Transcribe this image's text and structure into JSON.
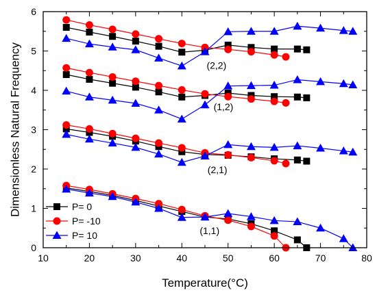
{
  "chart_data": {
    "type": "line",
    "xlabel": "Temperature(°C)",
    "ylabel": "Dimensionless Natural Frequency",
    "xlim": [
      10,
      80
    ],
    "ylim": [
      0,
      6
    ],
    "xticks": [
      10,
      20,
      30,
      40,
      50,
      60,
      70,
      80
    ],
    "yticks": [
      0,
      1,
      2,
      3,
      4,
      5,
      6
    ],
    "grid": false,
    "legend_position": "bottom-left",
    "legend": [
      {
        "label": "P= 0",
        "marker": "square",
        "color": "#000000"
      },
      {
        "label": "P= -10",
        "marker": "circle",
        "color": "#ff0000"
      },
      {
        "label": "P= 10",
        "marker": "triangle",
        "color": "#0000ff"
      }
    ],
    "annotations": [
      {
        "text": "(2,2)",
        "x": 47.5,
        "y": 4.55
      },
      {
        "text": "(1,2)",
        "x": 49.0,
        "y": 3.5
      },
      {
        "text": "(2,1)",
        "x": 47.7,
        "y": 1.9
      },
      {
        "text": "(1,1)",
        "x": 46.0,
        "y": 0.35
      }
    ],
    "series": [
      {
        "name": "P= 0",
        "mode": "(2,2)",
        "marker": "square",
        "color": "#000000",
        "x": [
          15,
          20,
          25,
          30,
          35,
          40,
          45,
          50,
          55,
          60,
          65,
          67
        ],
        "y": [
          5.6,
          5.48,
          5.37,
          5.25,
          5.12,
          4.97,
          5.02,
          5.15,
          5.09,
          5.05,
          5.05,
          5.03
        ]
      },
      {
        "name": "P= -10",
        "mode": "(2,2)",
        "marker": "circle",
        "color": "#ff0000",
        "x": [
          15,
          20,
          25,
          30,
          35,
          40,
          45,
          50,
          55,
          60,
          62.5
        ],
        "y": [
          5.79,
          5.66,
          5.55,
          5.43,
          5.31,
          5.19,
          5.09,
          5.04,
          4.98,
          4.9,
          4.85
        ]
      },
      {
        "name": "P= 10",
        "mode": "(2,2)",
        "marker": "triangle",
        "color": "#0000ff",
        "x": [
          15,
          20,
          25,
          30,
          35,
          40,
          45,
          50,
          55,
          60,
          65,
          70,
          75,
          77
        ],
        "y": [
          5.32,
          5.18,
          5.1,
          5.03,
          4.82,
          4.62,
          4.98,
          5.49,
          5.5,
          5.5,
          5.63,
          5.58,
          5.52,
          5.5
        ]
      },
      {
        "name": "P= 0",
        "mode": "(1,2)",
        "marker": "square",
        "color": "#000000",
        "x": [
          15,
          20,
          25,
          30,
          35,
          40,
          45,
          50,
          55,
          60,
          65,
          67
        ],
        "y": [
          4.4,
          4.28,
          4.18,
          4.08,
          3.96,
          3.83,
          3.87,
          3.93,
          3.87,
          3.84,
          3.83,
          3.81
        ]
      },
      {
        "name": "P= -10",
        "mode": "(1,2)",
        "marker": "circle",
        "color": "#ff0000",
        "x": [
          15,
          20,
          25,
          30,
          35,
          40,
          45,
          50,
          55,
          60,
          62.5
        ],
        "y": [
          4.57,
          4.45,
          4.34,
          4.23,
          4.12,
          4.01,
          3.91,
          3.84,
          3.78,
          3.72,
          3.68
        ]
      },
      {
        "name": "P= 10",
        "mode": "(1,2)",
        "marker": "triangle",
        "color": "#0000ff",
        "x": [
          15,
          20,
          25,
          30,
          35,
          40,
          45,
          50,
          55,
          60,
          65,
          70,
          75,
          77
        ],
        "y": [
          3.98,
          3.83,
          3.75,
          3.67,
          3.5,
          3.27,
          3.63,
          4.11,
          4.12,
          4.13,
          4.27,
          4.22,
          4.17,
          4.14
        ]
      },
      {
        "name": "P= 0",
        "mode": "(2,1)",
        "marker": "square",
        "color": "#000000",
        "x": [
          15,
          20,
          25,
          30,
          35,
          40,
          45,
          50,
          55,
          60,
          65,
          67
        ],
        "y": [
          3.02,
          2.93,
          2.83,
          2.71,
          2.57,
          2.44,
          2.37,
          2.35,
          2.31,
          2.26,
          2.23,
          2.2
        ]
      },
      {
        "name": "P= -10",
        "mode": "(2,1)",
        "marker": "circle",
        "color": "#ff0000",
        "x": [
          15,
          20,
          25,
          30,
          35,
          40,
          45,
          50,
          55,
          60,
          62.5
        ],
        "y": [
          3.12,
          3.02,
          2.9,
          2.78,
          2.66,
          2.54,
          2.41,
          2.36,
          2.29,
          2.21,
          2.14
        ]
      },
      {
        "name": "P= 10",
        "mode": "(2,1)",
        "marker": "triangle",
        "color": "#0000ff",
        "x": [
          15,
          20,
          25,
          30,
          35,
          40,
          45,
          50,
          55,
          60,
          65,
          70,
          75,
          77
        ],
        "y": [
          2.88,
          2.76,
          2.66,
          2.55,
          2.38,
          2.17,
          2.33,
          2.62,
          2.57,
          2.55,
          2.59,
          2.53,
          2.46,
          2.43
        ]
      },
      {
        "name": "P= 0",
        "mode": "(1,1)",
        "marker": "square",
        "color": "#000000",
        "x": [
          15,
          20,
          25,
          30,
          35,
          40,
          45,
          50,
          55,
          60,
          65,
          67
        ],
        "y": [
          1.52,
          1.43,
          1.33,
          1.2,
          1.06,
          0.92,
          0.78,
          0.73,
          0.61,
          0.43,
          0.2,
          0.0
        ]
      },
      {
        "name": "P= -10",
        "mode": "(1,1)",
        "marker": "circle",
        "color": "#ff0000",
        "x": [
          15,
          20,
          25,
          30,
          35,
          40,
          45,
          50,
          55,
          60,
          62.5
        ],
        "y": [
          1.58,
          1.48,
          1.37,
          1.25,
          1.12,
          0.97,
          0.81,
          0.7,
          0.54,
          0.3,
          0.0
        ]
      },
      {
        "name": "P= 10",
        "mode": "(1,1)",
        "marker": "triangle",
        "color": "#0000ff",
        "x": [
          15,
          20,
          25,
          30,
          35,
          40,
          45,
          50,
          55,
          60,
          65,
          70,
          75,
          77
        ],
        "y": [
          1.49,
          1.39,
          1.3,
          1.16,
          1.0,
          0.77,
          0.78,
          0.87,
          0.79,
          0.69,
          0.66,
          0.5,
          0.23,
          0.0
        ]
      }
    ]
  }
}
